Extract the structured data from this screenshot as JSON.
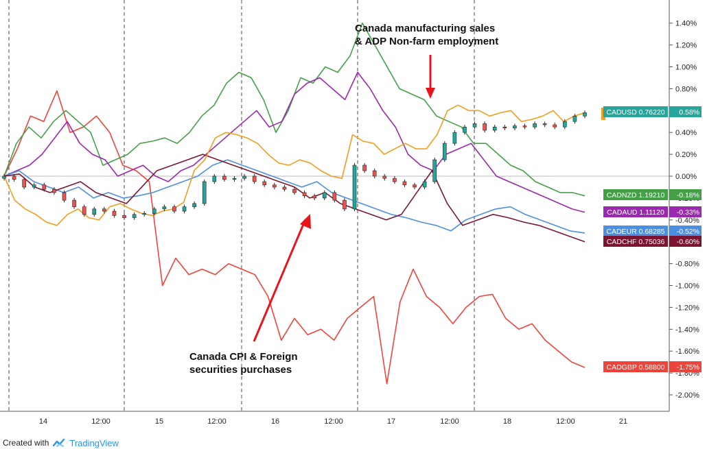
{
  "footer": {
    "created_with": "Created with",
    "brand": "TradingView",
    "logo_icon": "tradingview-logo-icon"
  },
  "chart_data": {
    "type": "line",
    "x_axis_labels": [
      "14",
      "12:00",
      "15",
      "12:00",
      "16",
      "12:00",
      "17",
      "12:00",
      "18",
      "12:00",
      "21"
    ],
    "y_ticks": [
      "1.40%",
      "1.20%",
      "1.00%",
      "0.80%",
      "0.60%",
      "0.40%",
      "0.20%",
      "0.00%",
      "-0.20%",
      "-0.40%",
      "-0.60%",
      "-0.80%",
      "-1.00%",
      "-1.20%",
      "-1.40%",
      "-1.60%",
      "-1.80%",
      "-2.00%"
    ],
    "ylim": [
      -2.2,
      1.55
    ],
    "grid": false,
    "series": [
      {
        "name": "CADUSD 0.76220",
        "change": "0.58%",
        "color": "#f59c1a",
        "values": [
          0.0,
          -0.22,
          -0.3,
          -0.35,
          -0.42,
          -0.45,
          -0.35,
          -0.3,
          -0.38,
          -0.4,
          -0.28,
          -0.25,
          -0.3,
          -0.34,
          -0.36,
          -0.32,
          -0.3,
          -0.24,
          0.05,
          0.15,
          0.35,
          0.4,
          0.38,
          0.35,
          0.3,
          0.2,
          0.12,
          0.1,
          0.15,
          0.12,
          0.05,
          0.0,
          -0.02,
          0.38,
          0.32,
          0.3,
          0.2,
          0.25,
          0.3,
          0.25,
          0.25,
          0.38,
          0.6,
          0.65,
          0.6,
          0.6,
          0.55,
          0.58,
          0.6,
          0.5,
          0.52,
          0.55,
          0.6,
          0.5,
          0.55,
          0.58
        ]
      },
      {
        "name": "CADNZD 1.19210",
        "change": "-0.18%",
        "color": "#43a047",
        "values": [
          0.0,
          0.3,
          0.45,
          0.35,
          0.5,
          0.6,
          0.5,
          0.4,
          0.1,
          0.15,
          0.2,
          0.3,
          0.32,
          0.35,
          0.3,
          0.4,
          0.55,
          0.65,
          0.85,
          0.95,
          0.9,
          0.7,
          0.4,
          0.6,
          0.9,
          0.85,
          1.0,
          0.95,
          1.1,
          1.4,
          1.2,
          1.0,
          0.8,
          0.75,
          0.7,
          0.55,
          0.5,
          0.45,
          0.3,
          0.3,
          0.2,
          0.1,
          0.05,
          -0.05,
          -0.1,
          -0.15,
          -0.15,
          -0.18
        ]
      },
      {
        "name": "CADAUD 1.11120",
        "change": "-0.33%",
        "color": "#9c27b0",
        "values": [
          0.0,
          0.05,
          0.1,
          0.2,
          0.35,
          0.5,
          0.3,
          0.2,
          0.15,
          0.0,
          0.05,
          0.1,
          0.0,
          -0.05,
          0.05,
          0.1,
          0.2,
          0.3,
          0.4,
          0.5,
          0.6,
          0.45,
          0.5,
          0.75,
          0.85,
          0.9,
          0.8,
          0.7,
          0.95,
          0.8,
          0.6,
          0.45,
          0.2,
          0.1,
          0.05,
          0.2,
          0.25,
          0.3,
          0.15,
          0.0,
          -0.05,
          -0.1,
          -0.15,
          -0.2,
          -0.25,
          -0.3,
          -0.33
        ]
      },
      {
        "name": "CADEUR 0.68285",
        "change": "-0.52%",
        "color": "#4a90e2",
        "values": [
          0.0,
          0.05,
          -0.05,
          -0.1,
          -0.15,
          -0.1,
          -0.2,
          -0.15,
          -0.2,
          -0.18,
          -0.15,
          -0.1,
          -0.05,
          0.0,
          0.1,
          0.15,
          0.1,
          0.05,
          0.0,
          -0.05,
          -0.1,
          -0.05,
          -0.15,
          -0.2,
          -0.25,
          -0.3,
          -0.35,
          -0.38,
          -0.42,
          -0.45,
          -0.5,
          -0.4,
          -0.35,
          -0.3,
          -0.28,
          -0.35,
          -0.4,
          -0.45,
          -0.5,
          -0.52
        ]
      },
      {
        "name": "CADCHF 0.75036",
        "change": "-0.60%",
        "color": "#7b1431",
        "values": [
          0.0,
          0.02,
          -0.1,
          -0.15,
          -0.1,
          -0.05,
          -0.15,
          -0.2,
          -0.25,
          -0.1,
          0.05,
          0.1,
          0.15,
          0.2,
          0.15,
          0.1,
          0.05,
          0.0,
          -0.05,
          -0.1,
          -0.2,
          -0.15,
          -0.25,
          -0.3,
          -0.35,
          -0.4,
          -0.35,
          -0.15,
          0.05,
          -0.25,
          -0.45,
          -0.4,
          -0.35,
          -0.38,
          -0.42,
          -0.45,
          -0.5,
          -0.55,
          -0.6
        ]
      },
      {
        "name": "CADGBP 0.58800",
        "change": "-1.75%",
        "color": "#f0443a",
        "values": [
          0.0,
          0.25,
          0.55,
          0.5,
          0.78,
          0.4,
          0.45,
          0.55,
          0.4,
          0.1,
          0.05,
          -0.05,
          -1.0,
          -0.75,
          -0.9,
          -0.85,
          -0.9,
          -0.8,
          -0.85,
          -0.9,
          -1.1,
          -1.5,
          -1.3,
          -1.45,
          -1.4,
          -1.5,
          -1.3,
          -1.2,
          -1.1,
          -1.9,
          -1.15,
          -0.85,
          -1.1,
          -1.2,
          -1.35,
          -1.2,
          -1.1,
          -1.08,
          -1.3,
          -1.4,
          -1.35,
          -1.5,
          -1.6,
          -1.7,
          -1.75
        ]
      }
    ],
    "candles": {
      "name": "CADUSD",
      "up_color": "#26a69a",
      "down_color": "#ef5350",
      "closes": [
        0.0,
        -0.03,
        -0.1,
        -0.08,
        -0.12,
        -0.15,
        -0.22,
        -0.28,
        -0.35,
        -0.3,
        -0.32,
        -0.36,
        -0.38,
        -0.35,
        -0.34,
        -0.3,
        -0.28,
        -0.32,
        -0.28,
        -0.25,
        -0.05,
        0.0,
        -0.03,
        -0.02,
        0.0,
        -0.05,
        -0.08,
        -0.1,
        -0.12,
        -0.15,
        -0.18,
        -0.2,
        -0.15,
        -0.22,
        -0.3,
        0.1,
        0.05,
        0.0,
        -0.02,
        -0.05,
        -0.08,
        -0.1,
        -0.05,
        0.15,
        0.3,
        0.4,
        0.45,
        0.48,
        0.42,
        0.45,
        0.44,
        0.46,
        0.45,
        0.48,
        0.47,
        0.45,
        0.5,
        0.55,
        0.58
      ]
    },
    "annotations": [
      {
        "lines": [
          "Canada manufacturing sales",
          "& ADP Non-farm employment"
        ]
      },
      {
        "lines": [
          "Canada CPI & Foreign",
          "securities purchases"
        ]
      }
    ]
  }
}
